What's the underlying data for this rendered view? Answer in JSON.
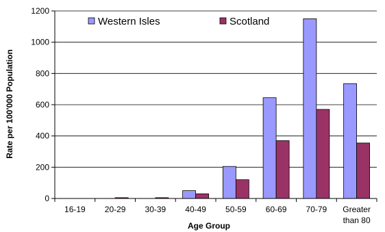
{
  "chart_data": {
    "type": "bar",
    "title": "",
    "xlabel": "Age Group",
    "ylabel": "Rate per 100'000 Population",
    "ylim": [
      0,
      1200
    ],
    "yticks": [
      0,
      200,
      400,
      600,
      800,
      1000,
      1200
    ],
    "ytick_labels": [
      "0",
      "200",
      "400",
      "600",
      "800",
      "1000",
      "1200"
    ],
    "grid": true,
    "legend_position": "top",
    "categories": [
      "16-19",
      "20-29",
      "30-39",
      "40-49",
      "50-59",
      "60-69",
      "70-79",
      "Greater than 80"
    ],
    "category_lines": [
      [
        "16-19"
      ],
      [
        "20-29"
      ],
      [
        "30-39"
      ],
      [
        "40-49"
      ],
      [
        "50-59"
      ],
      [
        "60-69"
      ],
      [
        "70-79"
      ],
      [
        "Greater",
        "than 80"
      ]
    ],
    "series": [
      {
        "name": "Western Isles",
        "color": "#9999ff",
        "values": [
          0,
          0,
          0,
          50,
          205,
          645,
          1150,
          735
        ]
      },
      {
        "name": "Scotland",
        "color": "#993366",
        "values": [
          0,
          5,
          5,
          30,
          120,
          370,
          570,
          355
        ]
      }
    ]
  }
}
